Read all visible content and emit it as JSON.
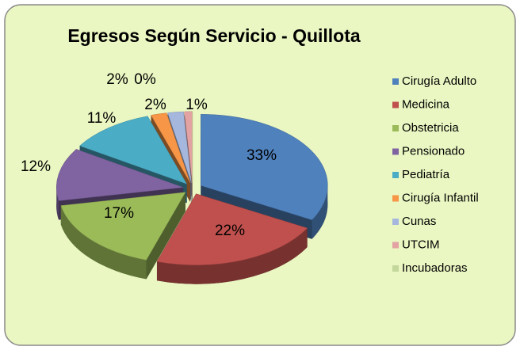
{
  "chart_data": {
    "type": "pie",
    "title": "Egresos Según  Servicio - Quillota",
    "categories": [
      "Cirugía Adulto",
      "Medicina",
      "Obstetricia",
      "Pensionado",
      "Pediatría",
      "Cirugía Infantil",
      "Cunas",
      "UTCIM",
      "Incubadoras"
    ],
    "values": [
      33,
      22,
      17,
      12,
      11,
      2,
      2,
      1,
      0
    ],
    "value_labels": [
      "33%",
      "22%",
      "17%",
      "12%",
      "11%",
      "2%",
      "2%",
      "1%",
      "0%"
    ],
    "colors": [
      "#4f81bd",
      "#c0504d",
      "#9bbb59",
      "#8064a2",
      "#4bacc6",
      "#f79646",
      "#a5b7dd",
      "#e3a3a2",
      "#c4d79c"
    ],
    "legend": "right"
  }
}
